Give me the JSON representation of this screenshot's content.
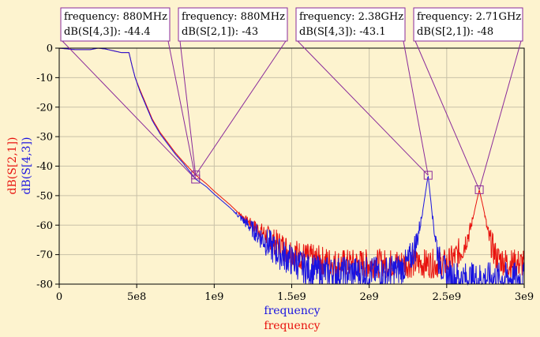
{
  "chart_data": {
    "type": "line",
    "xlabels": [
      "frequency",
      "frequency"
    ],
    "ylabels": [
      "dB(S[2,1])",
      "dB(S[4,3])"
    ],
    "xlim": [
      0,
      3000000000
    ],
    "ylim": [
      -80,
      0
    ],
    "xticks": [
      {
        "value": 0,
        "label": "0"
      },
      {
        "value": 500000000,
        "label": "5e8"
      },
      {
        "value": 1000000000,
        "label": "1e9"
      },
      {
        "value": 1500000000,
        "label": "1.5e9"
      },
      {
        "value": 2000000000,
        "label": "2e9"
      },
      {
        "value": 2500000000,
        "label": "2.5e9"
      },
      {
        "value": 3000000000,
        "label": "3e9"
      }
    ],
    "yticks": [
      {
        "value": 0,
        "label": "0"
      },
      {
        "value": -10,
        "label": "-10"
      },
      {
        "value": -20,
        "label": "-20"
      },
      {
        "value": -30,
        "label": "-30"
      },
      {
        "value": -40,
        "label": "-40"
      },
      {
        "value": -50,
        "label": "-50"
      },
      {
        "value": -60,
        "label": "-60"
      },
      {
        "value": -70,
        "label": "-70"
      },
      {
        "value": -80,
        "label": "-80"
      }
    ],
    "grid": true,
    "colors": {
      "s21": "#e8120e",
      "s43": "#1a14e0",
      "marker": "#8a2a9a",
      "background": "#fdf3cf",
      "grid": "#c9c2a8"
    },
    "series": [
      {
        "name": "dB(S[2,1])",
        "color": "#e8120e",
        "x": [
          0,
          100000000,
          200000000,
          250000000,
          300000000,
          400000000,
          450000000,
          470000000,
          490000000,
          520000000,
          560000000,
          600000000,
          650000000,
          700000000,
          750000000,
          800000000,
          880000000,
          950000000,
          1000000000,
          1100000000,
          1200000000,
          1300000000,
          1400000000,
          1500000000,
          1600000000,
          1700000000,
          1800000000,
          1900000000,
          2000000000,
          2100000000,
          2200000000,
          2300000000,
          2400000000,
          2500000000,
          2550000000,
          2600000000,
          2650000000,
          2680000000,
          2710000000,
          2740000000,
          2770000000,
          2820000000,
          2900000000,
          3000000000
        ],
        "y": [
          0,
          -0.5,
          -0.5,
          0,
          -0.3,
          -1.5,
          -1.5,
          -6,
          -10,
          -14,
          -19,
          -24,
          -28.5,
          -32,
          -35.5,
          -38.5,
          -43,
          -46,
          -48.5,
          -53,
          -58,
          -62,
          -66,
          -69,
          -71,
          -72,
          -73,
          -73,
          -73,
          -73,
          -73,
          -73,
          -73,
          -73,
          -71,
          -68,
          -62,
          -55,
          -48,
          -55,
          -64,
          -71,
          -73,
          -73
        ]
      },
      {
        "name": "dB(S[4,3])",
        "color": "#1a14e0",
        "x": [
          0,
          100000000,
          200000000,
          250000000,
          300000000,
          400000000,
          450000000,
          470000000,
          490000000,
          520000000,
          560000000,
          600000000,
          650000000,
          700000000,
          750000000,
          800000000,
          880000000,
          950000000,
          1000000000,
          1100000000,
          1200000000,
          1300000000,
          1400000000,
          1500000000,
          1600000000,
          1700000000,
          1800000000,
          1900000000,
          2000000000,
          2100000000,
          2200000000,
          2250000000,
          2300000000,
          2340000000,
          2380000000,
          2410000000,
          2450000000,
          2500000000,
          2600000000,
          2800000000,
          3000000000
        ],
        "y": [
          0,
          -0.5,
          -0.5,
          0,
          -0.3,
          -1.5,
          -1.5,
          -6,
          -10,
          -14.5,
          -19.5,
          -24.5,
          -29,
          -32.5,
          -36,
          -39,
          -44.4,
          -47,
          -49.5,
          -54,
          -59,
          -64,
          -69,
          -72,
          -75,
          -76,
          -76,
          -76,
          -76,
          -76,
          -75,
          -73,
          -67,
          -57,
          -43.1,
          -58,
          -72,
          -77,
          -78,
          -78,
          -78
        ]
      }
    ],
    "markers": [
      {
        "title": "frequency",
        "freq": "880MHz",
        "trace": "dB(S[4,3])",
        "value": "-44.4",
        "x": 880000000,
        "y": -44.4
      },
      {
        "title": "frequency",
        "freq": "880MHz",
        "trace": "dB(S[2,1])",
        "value": "-43",
        "x": 880000000,
        "y": -43
      },
      {
        "title": "frequency",
        "freq": "2.38GHz",
        "trace": "dB(S[4,3])",
        "value": "-43.1",
        "x": 2380000000,
        "y": -43.1
      },
      {
        "title": "frequency",
        "freq": "2.71GHz",
        "trace": "dB(S[2,1])",
        "value": "-48",
        "x": 2710000000,
        "y": -48
      }
    ]
  }
}
